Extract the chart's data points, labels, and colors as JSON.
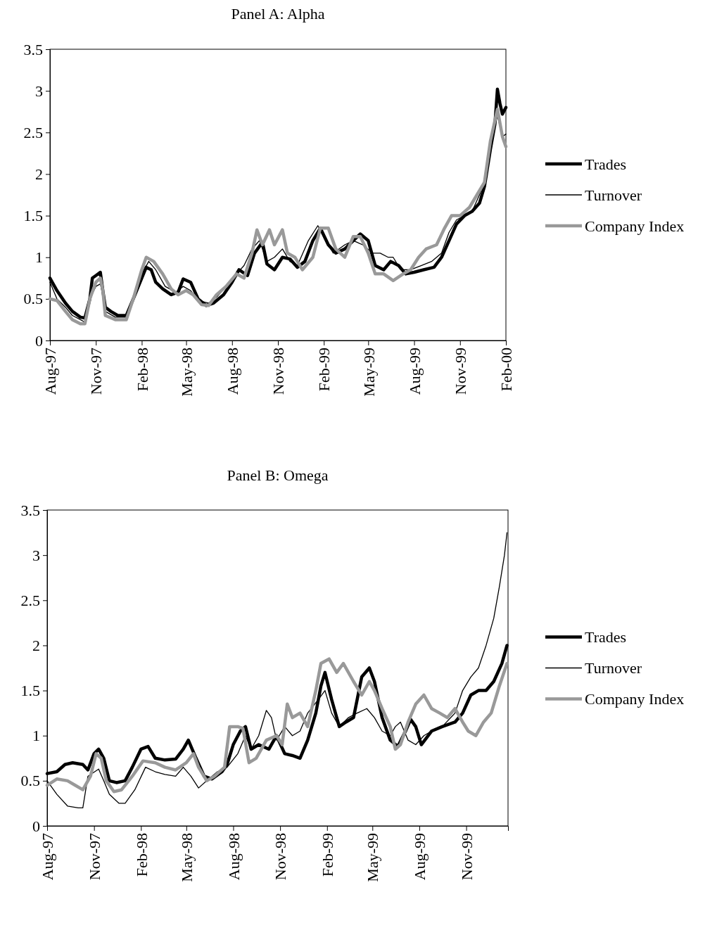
{
  "chart_data": [
    {
      "type": "line",
      "title": "Panel A: Alpha",
      "xlim": [
        "1997-08-01",
        "2000-02-01"
      ],
      "ylim": [
        0,
        3.5
      ],
      "yticks": [
        0,
        0.5,
        1,
        1.5,
        2,
        2.5,
        3,
        3.5
      ],
      "xticks": [
        {
          "value": "1997-08-01",
          "label": "Aug-97"
        },
        {
          "value": "1997-11-01",
          "label": "Nov-97"
        },
        {
          "value": "1998-02-01",
          "label": "Feb-98"
        },
        {
          "value": "1998-05-01",
          "label": "May-98"
        },
        {
          "value": "1998-08-01",
          "label": "Aug-98"
        },
        {
          "value": "1998-11-01",
          "label": "Nov-98"
        },
        {
          "value": "1999-02-01",
          "label": "Feb-99"
        },
        {
          "value": "1999-05-01",
          "label": "May-99"
        },
        {
          "value": "1999-08-01",
          "label": "Aug-99"
        },
        {
          "value": "1999-11-01",
          "label": "Nov-99"
        },
        {
          "value": "2000-02-01",
          "label": "Feb-00"
        }
      ],
      "legend": "right",
      "grid": false,
      "marker": "none",
      "line_style": "solid",
      "series": [
        {
          "name": "Trades",
          "color": "#000000",
          "x": [
            "1997-08-01",
            "1997-08-15",
            "1997-09-01",
            "1997-09-15",
            "1997-10-01",
            "1997-10-10",
            "1997-10-20",
            "1997-10-25",
            "1997-11-01",
            "1997-11-10",
            "1997-11-15",
            "1997-11-20",
            "1997-12-01",
            "1997-12-15",
            "1998-01-01",
            "1998-01-15",
            "1998-02-01",
            "1998-02-10",
            "1998-02-20",
            "1998-03-01",
            "1998-03-15",
            "1998-04-01",
            "1998-04-15",
            "1998-04-25",
            "1998-05-10",
            "1998-05-25",
            "1998-06-10",
            "1998-06-25",
            "1998-07-15",
            "1998-08-01",
            "1998-08-15",
            "1998-09-01",
            "1998-09-15",
            "1998-10-01",
            "1998-10-10",
            "1998-10-25",
            "1998-11-10",
            "1998-11-25",
            "1998-12-10",
            "1998-12-25",
            "1999-01-10",
            "1999-01-25",
            "1999-02-10",
            "1999-02-25",
            "1999-03-15",
            "1999-04-01",
            "1999-04-15",
            "1999-05-01",
            "1999-05-15",
            "1999-06-01",
            "1999-06-15",
            "1999-07-01",
            "1999-07-15",
            "1999-08-01",
            "1999-08-20",
            "1999-09-10",
            "1999-09-25",
            "1999-10-10",
            "1999-10-25",
            "1999-11-10",
            "1999-11-25",
            "1999-12-10",
            "1999-12-20",
            "2000-01-01",
            "2000-01-10",
            "2000-01-15",
            "2000-01-20",
            "2000-01-25",
            "2000-02-01"
          ],
          "values": [
            0.75,
            0.6,
            0.45,
            0.35,
            0.28,
            0.27,
            0.5,
            0.75,
            0.78,
            0.82,
            0.6,
            0.4,
            0.35,
            0.3,
            0.3,
            0.5,
            0.75,
            0.88,
            0.85,
            0.7,
            0.62,
            0.55,
            0.58,
            0.74,
            0.7,
            0.5,
            0.42,
            0.45,
            0.55,
            0.7,
            0.85,
            0.78,
            1.05,
            1.18,
            0.92,
            0.85,
            1.0,
            0.98,
            0.88,
            0.95,
            1.2,
            1.35,
            1.15,
            1.05,
            1.1,
            1.2,
            1.28,
            1.2,
            0.9,
            0.85,
            0.95,
            0.9,
            0.8,
            0.82,
            0.85,
            0.88,
            1.0,
            1.2,
            1.4,
            1.5,
            1.55,
            1.65,
            1.85,
            2.3,
            2.6,
            3.02,
            2.85,
            2.72,
            2.8
          ]
        },
        {
          "name": "Turnover",
          "color": "#000000",
          "x": [
            "1997-08-01",
            "1997-08-15",
            "1997-09-01",
            "1997-09-15",
            "1997-10-01",
            "1997-10-10",
            "1997-10-20",
            "1997-11-01",
            "1997-11-10",
            "1997-11-15",
            "1997-11-20",
            "1997-12-10",
            "1998-01-01",
            "1998-01-15",
            "1998-02-01",
            "1998-02-15",
            "1998-03-01",
            "1998-03-20",
            "1998-04-10",
            "1998-04-25",
            "1998-05-10",
            "1998-05-25",
            "1998-06-15",
            "1998-07-01",
            "1998-07-20",
            "1998-08-10",
            "1998-08-25",
            "1998-09-10",
            "1998-09-25",
            "1998-10-10",
            "1998-10-25",
            "1998-11-10",
            "1998-11-25",
            "1998-12-10",
            "1999-01-01",
            "1999-01-20",
            "1999-02-05",
            "1999-02-20",
            "1999-03-15",
            "1999-04-01",
            "1999-04-20",
            "1999-05-10",
            "1999-05-25",
            "1999-06-10",
            "1999-06-20",
            "1999-07-05",
            "1999-07-25",
            "1999-08-15",
            "1999-09-05",
            "1999-09-25",
            "1999-10-10",
            "1999-10-25",
            "1999-11-10",
            "1999-11-25",
            "1999-12-10",
            "1999-12-20",
            "2000-01-01",
            "2000-01-15",
            "2000-01-25",
            "2000-02-01"
          ],
          "values": [
            0.7,
            0.5,
            0.4,
            0.3,
            0.25,
            0.22,
            0.5,
            0.65,
            0.68,
            0.55,
            0.35,
            0.28,
            0.28,
            0.5,
            0.8,
            0.95,
            0.85,
            0.65,
            0.58,
            0.65,
            0.6,
            0.48,
            0.45,
            0.52,
            0.65,
            0.8,
            0.9,
            1.1,
            1.2,
            0.95,
            1.0,
            1.1,
            0.95,
            0.9,
            1.2,
            1.38,
            1.2,
            1.05,
            1.15,
            1.2,
            1.15,
            1.05,
            1.05,
            1.0,
            1.0,
            0.85,
            0.85,
            0.9,
            0.95,
            1.05,
            1.3,
            1.45,
            1.5,
            1.55,
            1.75,
            1.9,
            2.4,
            2.7,
            2.45,
            2.48
          ]
        },
        {
          "name": "Company Index",
          "color": "#999999",
          "x": [
            "1997-08-01",
            "1997-08-15",
            "1997-09-01",
            "1997-09-15",
            "1997-10-01",
            "1997-10-10",
            "1997-10-20",
            "1997-11-01",
            "1997-11-10",
            "1997-11-15",
            "1997-11-20",
            "1997-12-10",
            "1998-01-01",
            "1998-01-15",
            "1998-02-01",
            "1998-02-10",
            "1998-02-25",
            "1998-03-15",
            "1998-04-01",
            "1998-04-15",
            "1998-05-01",
            "1998-05-15",
            "1998-06-01",
            "1998-06-15",
            "1998-07-01",
            "1998-07-20",
            "1998-08-10",
            "1998-08-25",
            "1998-09-10",
            "1998-09-20",
            "1998-10-01",
            "1998-10-15",
            "1998-10-25",
            "1998-11-10",
            "1998-11-20",
            "1998-12-05",
            "1998-12-20",
            "1999-01-10",
            "1999-01-25",
            "1999-02-10",
            "1999-02-25",
            "1999-03-15",
            "1999-04-01",
            "1999-04-15",
            "1999-05-01",
            "1999-05-15",
            "1999-06-01",
            "1999-06-20",
            "1999-07-10",
            "1999-07-25",
            "1999-08-10",
            "1999-08-25",
            "1999-09-15",
            "1999-10-01",
            "1999-10-15",
            "1999-11-01",
            "1999-11-20",
            "1999-12-05",
            "1999-12-20",
            "2000-01-01",
            "2000-01-15",
            "2000-01-25",
            "2000-02-01"
          ],
          "values": [
            0.5,
            0.48,
            0.35,
            0.25,
            0.2,
            0.2,
            0.5,
            0.7,
            0.75,
            0.6,
            0.3,
            0.25,
            0.25,
            0.5,
            0.85,
            1.0,
            0.95,
            0.8,
            0.62,
            0.55,
            0.6,
            0.55,
            0.43,
            0.42,
            0.55,
            0.65,
            0.8,
            0.75,
            1.05,
            1.33,
            1.15,
            1.33,
            1.15,
            1.33,
            1.05,
            1.0,
            0.85,
            1.0,
            1.35,
            1.35,
            1.1,
            1.0,
            1.25,
            1.25,
            1.05,
            0.8,
            0.8,
            0.72,
            0.8,
            0.85,
            1.0,
            1.1,
            1.15,
            1.35,
            1.5,
            1.5,
            1.6,
            1.75,
            1.9,
            2.4,
            2.78,
            2.45,
            2.33
          ]
        }
      ]
    },
    {
      "type": "line",
      "title": "Panel B: Omega",
      "xlim": [
        "1997-08-01",
        "2000-01-22"
      ],
      "ylim": [
        0,
        3.5
      ],
      "yticks": [
        0,
        0.5,
        1,
        1.5,
        2,
        2.5,
        3,
        3.5
      ],
      "xticks": [
        {
          "value": "1997-08-01",
          "label": "Aug-97"
        },
        {
          "value": "1997-11-01",
          "label": "Nov-97"
        },
        {
          "value": "1998-02-01",
          "label": "Feb-98"
        },
        {
          "value": "1998-05-01",
          "label": "May-98"
        },
        {
          "value": "1998-08-01",
          "label": "Aug-98"
        },
        {
          "value": "1998-11-01",
          "label": "Nov-98"
        },
        {
          "value": "1999-02-01",
          "label": "Feb-99"
        },
        {
          "value": "1999-05-01",
          "label": "May-99"
        },
        {
          "value": "1999-08-01",
          "label": "Aug-99"
        },
        {
          "value": "1999-11-01",
          "label": "Nov-99"
        }
      ],
      "legend": "right",
      "grid": false,
      "marker": "none",
      "line_style": "solid",
      "series": [
        {
          "name": "Trades",
          "color": "#000000",
          "x": [
            "1997-08-01",
            "1997-08-20",
            "1997-09-05",
            "1997-09-20",
            "1997-10-10",
            "1997-10-20",
            "1997-11-01",
            "1997-11-10",
            "1997-11-20",
            "1997-12-01",
            "1997-12-15",
            "1998-01-01",
            "1998-01-15",
            "1998-02-01",
            "1998-02-15",
            "1998-03-01",
            "1998-03-20",
            "1998-04-10",
            "1998-04-25",
            "1998-05-05",
            "1998-05-20",
            "1998-06-05",
            "1998-06-20",
            "1998-07-10",
            "1998-07-20",
            "1998-08-01",
            "1998-08-15",
            "1998-08-25",
            "1998-09-05",
            "1998-09-20",
            "1998-10-10",
            "1998-10-25",
            "1998-11-10",
            "1998-11-25",
            "1998-12-10",
            "1998-12-25",
            "1999-01-10",
            "1999-01-20",
            "1999-01-28",
            "1999-02-10",
            "1999-02-25",
            "1999-03-10",
            "1999-03-25",
            "1999-04-10",
            "1999-04-25",
            "1999-05-05",
            "1999-05-20",
            "1999-06-05",
            "1999-06-20",
            "1999-07-05",
            "1999-07-15",
            "1999-07-25",
            "1999-08-05",
            "1999-08-25",
            "1999-09-15",
            "1999-10-10",
            "1999-10-25",
            "1999-11-10",
            "1999-11-25",
            "1999-12-10",
            "1999-12-25",
            "2000-01-10",
            "2000-01-20"
          ],
          "values": [
            0.58,
            0.6,
            0.68,
            0.7,
            0.68,
            0.62,
            0.8,
            0.85,
            0.75,
            0.5,
            0.48,
            0.5,
            0.65,
            0.85,
            0.88,
            0.75,
            0.73,
            0.74,
            0.85,
            0.95,
            0.75,
            0.55,
            0.52,
            0.6,
            0.68,
            0.9,
            1.05,
            1.1,
            0.85,
            0.9,
            0.85,
            1.0,
            0.8,
            0.78,
            0.75,
            0.95,
            1.25,
            1.55,
            1.7,
            1.4,
            1.1,
            1.15,
            1.2,
            1.65,
            1.75,
            1.6,
            1.2,
            0.95,
            0.88,
            1.05,
            1.18,
            1.1,
            0.9,
            1.05,
            1.1,
            1.15,
            1.25,
            1.45,
            1.5,
            1.5,
            1.6,
            1.8,
            2.0
          ]
        },
        {
          "name": "Turnover",
          "color": "#000000",
          "x": [
            "1997-08-01",
            "1997-08-20",
            "1997-09-10",
            "1997-10-01",
            "1997-10-10",
            "1997-10-20",
            "1997-11-10",
            "1997-11-20",
            "1997-12-01",
            "1997-12-20",
            "1998-01-01",
            "1998-01-20",
            "1998-02-10",
            "1998-03-01",
            "1998-03-20",
            "1998-04-10",
            "1998-04-25",
            "1998-05-10",
            "1998-05-25",
            "1998-06-10",
            "1998-07-01",
            "1998-07-20",
            "1998-08-10",
            "1998-08-25",
            "1998-09-05",
            "1998-09-20",
            "1998-10-05",
            "1998-10-15",
            "1998-10-25",
            "1998-11-10",
            "1998-11-25",
            "1998-12-10",
            "1998-12-25",
            "1999-01-15",
            "1999-01-28",
            "1999-02-10",
            "1999-02-25",
            "1999-03-15",
            "1999-04-01",
            "1999-04-20",
            "1999-05-05",
            "1999-05-20",
            "1999-06-05",
            "1999-06-15",
            "1999-06-25",
            "1999-07-10",
            "1999-07-25",
            "1999-08-10",
            "1999-08-25",
            "1999-09-15",
            "1999-10-10",
            "1999-10-25",
            "1999-11-10",
            "1999-11-25",
            "1999-12-10",
            "1999-12-25",
            "2000-01-05",
            "2000-01-15",
            "2000-01-20"
          ],
          "values": [
            0.5,
            0.35,
            0.22,
            0.2,
            0.2,
            0.55,
            0.63,
            0.5,
            0.35,
            0.25,
            0.25,
            0.4,
            0.65,
            0.6,
            0.57,
            0.55,
            0.65,
            0.55,
            0.42,
            0.5,
            0.6,
            0.65,
            0.8,
            1.0,
            0.85,
            1.0,
            1.28,
            1.2,
            0.95,
            1.1,
            1.0,
            1.05,
            1.25,
            1.4,
            1.5,
            1.25,
            1.1,
            1.2,
            1.25,
            1.3,
            1.2,
            1.05,
            1.0,
            1.1,
            1.15,
            0.95,
            0.9,
            1.0,
            1.05,
            1.1,
            1.25,
            1.5,
            1.65,
            1.75,
            2.0,
            2.3,
            2.65,
            3.0,
            3.25
          ]
        },
        {
          "name": "Company Index",
          "color": "#999999",
          "x": [
            "1997-08-01",
            "1997-08-20",
            "1997-09-10",
            "1997-09-25",
            "1997-10-10",
            "1997-10-25",
            "1997-11-05",
            "1997-11-15",
            "1997-11-25",
            "1997-12-10",
            "1997-12-25",
            "1998-01-15",
            "1998-02-05",
            "1998-03-01",
            "1998-03-20",
            "1998-04-10",
            "1998-05-01",
            "1998-05-15",
            "1998-05-25",
            "1998-06-10",
            "1998-06-25",
            "1998-07-15",
            "1998-07-25",
            "1998-08-10",
            "1998-08-20",
            "1998-09-01",
            "1998-09-15",
            "1998-10-05",
            "1998-10-25",
            "1998-11-05",
            "1998-11-15",
            "1998-11-25",
            "1998-12-10",
            "1998-12-25",
            "1999-01-10",
            "1999-01-20",
            "1999-02-05",
            "1999-02-20",
            "1999-03-05",
            "1999-03-25",
            "1999-04-10",
            "1999-04-25",
            "1999-05-05",
            "1999-05-20",
            "1999-06-05",
            "1999-06-15",
            "1999-06-25",
            "1999-07-10",
            "1999-07-25",
            "1999-08-10",
            "1999-08-25",
            "1999-09-10",
            "1999-09-25",
            "1999-10-10",
            "1999-10-25",
            "1999-11-05",
            "1999-11-20",
            "1999-12-05",
            "1999-12-20",
            "2000-01-05",
            "2000-01-20"
          ],
          "values": [
            0.45,
            0.52,
            0.5,
            0.45,
            0.4,
            0.55,
            0.8,
            0.75,
            0.5,
            0.38,
            0.4,
            0.55,
            0.72,
            0.7,
            0.65,
            0.62,
            0.7,
            0.8,
            0.65,
            0.5,
            0.55,
            0.65,
            1.1,
            1.1,
            1.08,
            0.7,
            0.75,
            0.95,
            1.0,
            0.9,
            1.35,
            1.2,
            1.25,
            1.1,
            1.5,
            1.8,
            1.85,
            1.7,
            1.8,
            1.6,
            1.45,
            1.6,
            1.5,
            1.3,
            1.1,
            0.85,
            0.9,
            1.15,
            1.35,
            1.45,
            1.3,
            1.25,
            1.2,
            1.3,
            1.15,
            1.05,
            1.0,
            1.15,
            1.25,
            1.55,
            1.8
          ]
        }
      ]
    }
  ]
}
